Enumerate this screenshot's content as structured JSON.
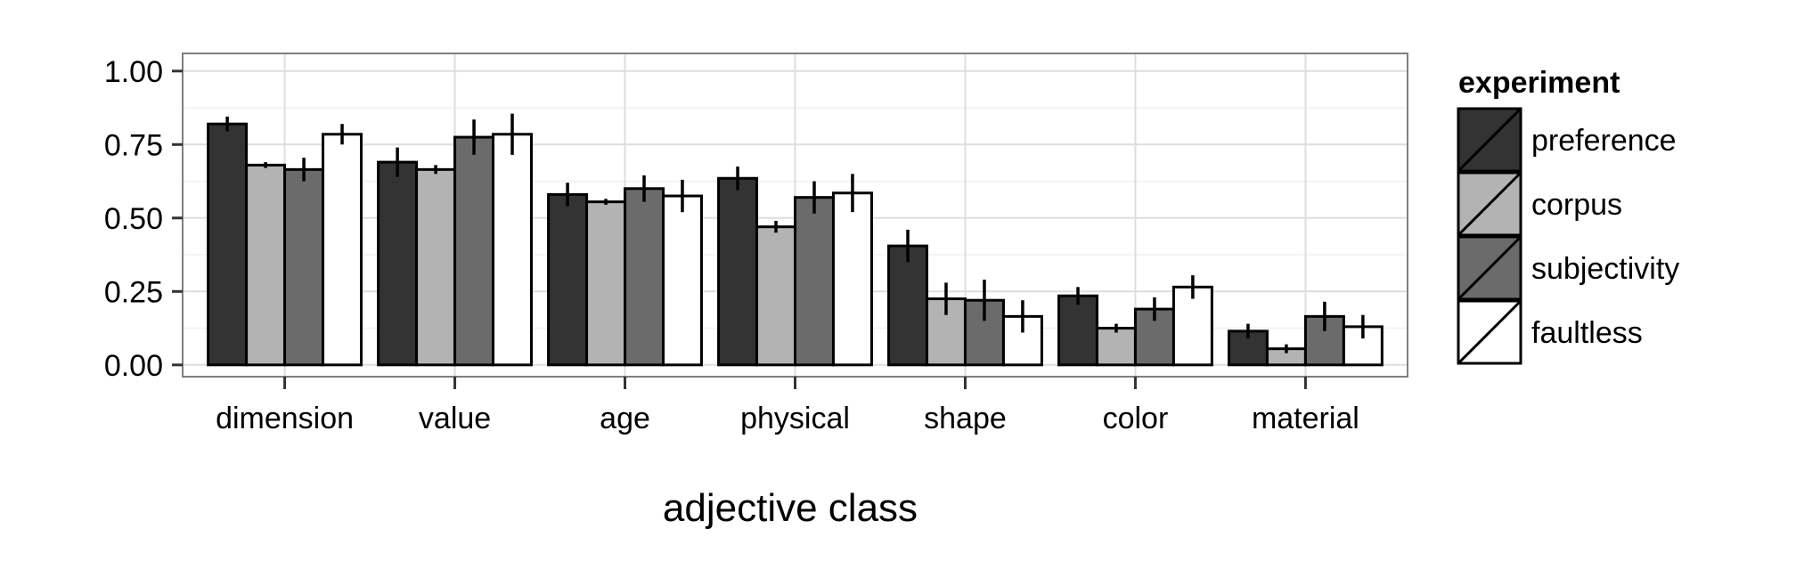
{
  "chart_data": {
    "type": "bar",
    "title": "",
    "xlabel": "adjective class",
    "ylabel": "",
    "ylim": [
      -0.04,
      1.06
    ],
    "yticks": [
      "0.00",
      "0.25",
      "0.50",
      "0.75",
      "1.00"
    ],
    "categories": [
      "dimension",
      "value",
      "age",
      "physical",
      "shape",
      "color",
      "material"
    ],
    "series": [
      {
        "name": "preference",
        "color": "#333333",
        "values": [
          0.82,
          0.69,
          0.58,
          0.635,
          0.405,
          0.235,
          0.115
        ],
        "err": [
          0.025,
          0.05,
          0.04,
          0.04,
          0.055,
          0.03,
          0.025
        ]
      },
      {
        "name": "corpus",
        "color": "#b3b3b3",
        "values": [
          0.68,
          0.665,
          0.555,
          0.47,
          0.225,
          0.125,
          0.055
        ],
        "err": [
          0.01,
          0.015,
          0.01,
          0.02,
          0.055,
          0.015,
          0.015
        ]
      },
      {
        "name": "subjectivity",
        "color": "#6b6b6b",
        "values": [
          0.665,
          0.775,
          0.6,
          0.57,
          0.22,
          0.19,
          0.165
        ],
        "err": [
          0.04,
          0.06,
          0.045,
          0.055,
          0.07,
          0.04,
          0.05
        ]
      },
      {
        "name": "faultless",
        "color": "#ffffff",
        "values": [
          0.785,
          0.785,
          0.575,
          0.585,
          0.165,
          0.265,
          0.13
        ],
        "err": [
          0.035,
          0.07,
          0.055,
          0.065,
          0.055,
          0.04,
          0.04
        ]
      }
    ],
    "grid": true,
    "legend": {
      "title": "experiment",
      "placement": "right"
    }
  }
}
